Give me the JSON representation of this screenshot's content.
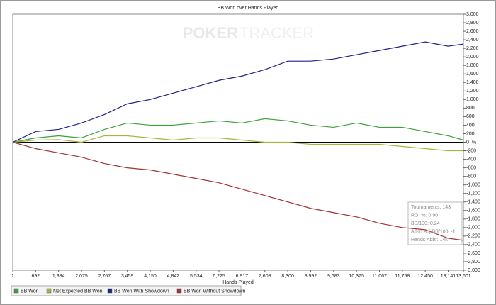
{
  "chart_data": {
    "type": "line",
    "title": "BB Won over Hands Played",
    "x_label": "Hands Played",
    "y_label": "%",
    "watermark": [
      "POKER",
      "TRACKER"
    ],
    "x": [
      1,
      692,
      1384,
      2075,
      2767,
      3459,
      4150,
      4842,
      5534,
      6225,
      6917,
      7608,
      8300,
      8992,
      9683,
      10375,
      11067,
      11758,
      12450,
      13141,
      13601
    ],
    "series": [
      {
        "name": "BB Won",
        "color": "#3f9f3f",
        "values": [
          0,
          100,
          150,
          100,
          300,
          450,
          400,
          400,
          450,
          500,
          450,
          550,
          500,
          400,
          350,
          450,
          350,
          350,
          250,
          150,
          50
        ]
      },
      {
        "name": "Net Expected BB Won",
        "color": "#aab43c",
        "values": [
          0,
          50,
          60,
          0,
          150,
          150,
          100,
          50,
          100,
          100,
          50,
          0,
          0,
          -50,
          -50,
          -50,
          -50,
          -100,
          -150,
          -200,
          -200
        ]
      },
      {
        "name": "BB Won With Showdown",
        "color": "#22228c",
        "values": [
          0,
          250,
          300,
          450,
          650,
          900,
          1000,
          1150,
          1300,
          1450,
          1550,
          1700,
          1900,
          1900,
          1950,
          2050,
          2150,
          2250,
          2350,
          2250,
          2300
        ]
      },
      {
        "name": "BB Won Without Showdown",
        "color": "#a33232",
        "values": [
          0,
          -150,
          -250,
          -350,
          -500,
          -600,
          -650,
          -750,
          -850,
          -950,
          -1100,
          -1250,
          -1400,
          -1550,
          -1650,
          -1750,
          -1900,
          -2000,
          -2050,
          -2250,
          -2300
        ]
      }
    ],
    "xlim": [
      1,
      13601
    ],
    "xticks": [
      1,
      692,
      {
        "value": 1384,
        "label": "1,384"
      },
      {
        "value": 2075,
        "label": "2,075"
      },
      {
        "value": 2767,
        "label": "2,767"
      },
      {
        "value": 3459,
        "label": "3,459"
      },
      {
        "value": 4150,
        "label": "4,150"
      },
      {
        "value": 4842,
        "label": "4,842"
      },
      {
        "value": 5534,
        "label": "5,534"
      },
      {
        "value": 6225,
        "label": "6,225"
      },
      {
        "value": 6917,
        "label": "6,917"
      },
      {
        "value": 7608,
        "label": "7,608"
      },
      {
        "value": 8300,
        "label": "8,300"
      },
      {
        "value": 8992,
        "label": "8,992"
      },
      {
        "value": 9683,
        "label": "9,683"
      },
      {
        "value": 10375,
        "label": "10,375"
      },
      {
        "value": 11067,
        "label": "11,067"
      },
      {
        "value": 11758,
        "label": "11,758"
      },
      {
        "value": 12450,
        "label": "12,450"
      },
      {
        "value": 13141,
        "label": "13,141"
      },
      {
        "value": 13601,
        "label": "13,601"
      }
    ],
    "ylim": [
      -3000,
      3000
    ],
    "yticks": [
      {
        "value": -3000,
        "label": "-3,000"
      },
      {
        "value": -2800,
        "label": "-2,800"
      },
      {
        "value": -2600,
        "label": "-2,600"
      },
      {
        "value": -2400,
        "label": "-2,400"
      },
      {
        "value": -2200,
        "label": "-2,200"
      },
      {
        "value": -2000,
        "label": "-2,000"
      },
      {
        "value": -1800,
        "label": "-1,800"
      },
      {
        "value": -1600,
        "label": "-1,600"
      },
      {
        "value": -1400,
        "label": "-1,400"
      },
      {
        "value": -1200,
        "label": "-1,200"
      },
      {
        "value": -1000,
        "label": "-1,000"
      },
      -800,
      -600,
      -400,
      -200,
      0,
      200,
      400,
      600,
      800,
      {
        "value": 1000,
        "label": "1,000"
      },
      {
        "value": 1200,
        "label": "1,200"
      },
      {
        "value": 1400,
        "label": "1,400"
      },
      {
        "value": 1600,
        "label": "1,600"
      },
      {
        "value": 1800,
        "label": "1,800"
      },
      {
        "value": 2000,
        "label": "2,000"
      },
      {
        "value": 2200,
        "label": "2,200"
      },
      {
        "value": 2400,
        "label": "2,400"
      },
      {
        "value": 2600,
        "label": "2,600"
      },
      {
        "value": 2800,
        "label": "2,800"
      },
      {
        "value": 3000,
        "label": "3,000"
      }
    ],
    "grid": false,
    "legend": "bottom",
    "stats": [
      "Tournaments: 143",
      "ROI %: 0.90",
      "BB/100: 0.24",
      "All-In Adj BB/100: -1",
      "Hands Abbr: 14k"
    ]
  }
}
